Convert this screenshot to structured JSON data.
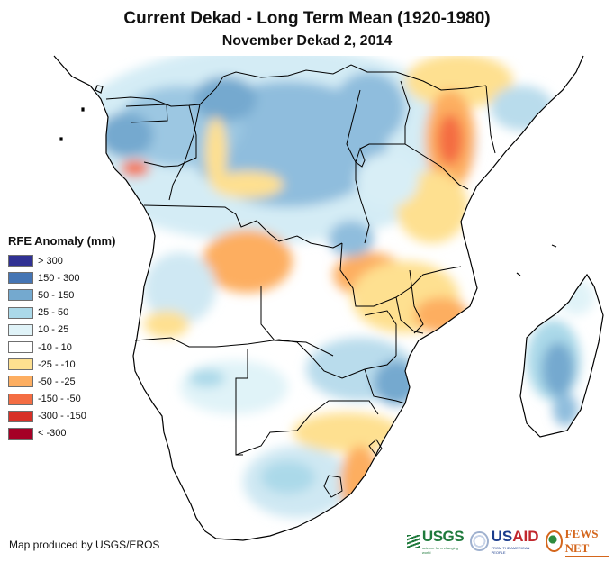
{
  "header": {
    "title": "Current Dekad - Long Term Mean (1920-1980)",
    "subtitle": "November Dekad 2, 2014"
  },
  "legend": {
    "title": "RFE Anomaly (mm)",
    "items": [
      {
        "label": "> 300",
        "color": "#303193"
      },
      {
        "label": "150 - 300",
        "color": "#4575b4"
      },
      {
        "label": "50 - 150",
        "color": "#74a9cf"
      },
      {
        "label": "25 - 50",
        "color": "#abd9e9"
      },
      {
        "label": "10 - 25",
        "color": "#e0f3f8"
      },
      {
        "label": "-10 - 10",
        "color": "#ffffff"
      },
      {
        "label": "-25 - -10",
        "color": "#fee090"
      },
      {
        "label": "-50 - -25",
        "color": "#fdae61"
      },
      {
        "label": "-150 - -50",
        "color": "#f46d43"
      },
      {
        "label": "-300 - -150",
        "color": "#d73027"
      },
      {
        "label": "< -300",
        "color": "#a50026"
      }
    ]
  },
  "map": {
    "region": "Central, Eastern and Southern Africa",
    "anomaly_zones": [
      {
        "area": "Congo Basin / Central Africa",
        "class": "50 - 150"
      },
      {
        "area": "Kenya / Ethiopia highlands",
        "class": "-50 - -25"
      },
      {
        "area": "Angola plateau",
        "class": "-50 - -25"
      },
      {
        "area": "Zambia / Malawi / Mozambique",
        "class": "-25 - -10"
      },
      {
        "area": "Eastern South Africa (KwaZulu-Natal)",
        "class": "-50 - -25"
      },
      {
        "area": "Madagascar",
        "class": "50 - 150"
      },
      {
        "area": "Gabon coast",
        "class": "-150 - -50"
      },
      {
        "area": "Zimbabwe / southern Mozambique",
        "class": "50 - 150"
      }
    ]
  },
  "footer": {
    "credit": "Map produced by USGS/EROS",
    "logos": {
      "usgs": "USGS",
      "usgs_tagline": "science for a changing world",
      "usaid_prefix": "US",
      "usaid_suffix": "AID",
      "usaid_tagline": "FROM THE AMERICAN PEOPLE",
      "fews": "FEWS NET"
    }
  }
}
